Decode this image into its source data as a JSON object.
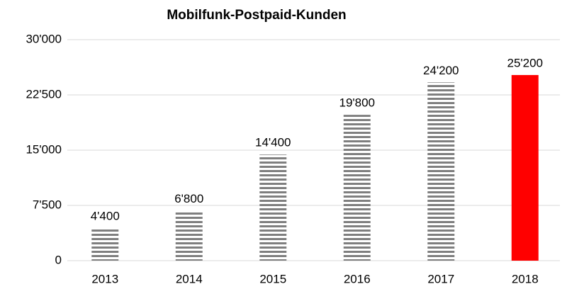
{
  "chart_data": {
    "type": "bar",
    "title": "Mobilfunk-Postpaid-Kunden",
    "categories": [
      "2013",
      "2014",
      "2015",
      "2016",
      "2017",
      "2018"
    ],
    "values": [
      4400,
      6800,
      14400,
      19800,
      24200,
      25200
    ],
    "value_labels": [
      "4'400",
      "6'800",
      "14'400",
      "19'800",
      "24'200",
      "25'200"
    ],
    "colors": [
      "#7f7f7f",
      "#7f7f7f",
      "#7f7f7f",
      "#7f7f7f",
      "#7f7f7f",
      "#ff0000"
    ],
    "hatched": [
      true,
      true,
      true,
      true,
      true,
      false
    ],
    "ylim": [
      0,
      30000
    ],
    "yticks": [
      0,
      {
        "value": 7500,
        "label": "7'500"
      },
      {
        "value": 15000,
        "label": "15'000"
      },
      {
        "value": 22500,
        "label": "22'500"
      },
      {
        "value": 30000,
        "label": "30'000"
      }
    ],
    "grid": true
  }
}
